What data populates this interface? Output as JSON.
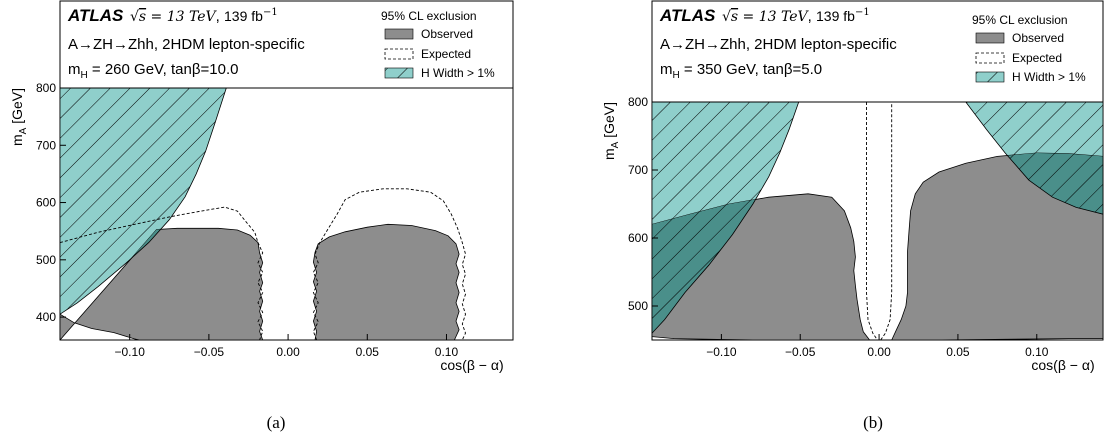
{
  "chart_data": [
    {
      "type": "area",
      "panel_label": "(a)",
      "experiment": "ATLAS",
      "energy_label": "√s = 13 TeV, 139 fb⁻¹",
      "sqrt_s": "13 TeV",
      "luminosity": "139 fb",
      "luminosity_exponent": "−1",
      "process": "A→ZH→Zhh, 2HDM lepton-specific",
      "parameters": "m_H = 260 GeV, tanβ=10.0",
      "mh_value": "260",
      "tanb_value": "10.0",
      "legend_title": "95% CL exclusion",
      "legend": [
        "Observed",
        "Expected",
        "H Width > 1%"
      ],
      "xlabel": "cos(β − α)",
      "ylabel": "m_A [GeV]",
      "xlim": [
        -0.144,
        0.142
      ],
      "ylim": [
        360,
        800
      ],
      "xticks": [
        -0.1,
        -0.05,
        0.0,
        0.05,
        0.1
      ],
      "xtick_labels": [
        "−0.10",
        "−0.05",
        "0.00",
        "0.05",
        "0.10"
      ],
      "yticks": [
        400,
        500,
        600,
        700,
        800
      ],
      "ytick_labels": [
        "400",
        "500",
        "600",
        "700",
        "800"
      ],
      "observed": [
        [
          [
            -0.144,
            360
          ],
          [
            -0.144,
            405
          ],
          [
            -0.135,
            390
          ],
          [
            -0.124,
            380
          ],
          [
            -0.11,
            373
          ],
          [
            -0.097,
            362
          ],
          [
            -0.094,
            360
          ],
          [
            -0.016,
            360
          ],
          [
            -0.018,
            375
          ],
          [
            -0.016,
            393
          ],
          [
            -0.018,
            410
          ],
          [
            -0.016,
            428
          ],
          [
            -0.018,
            445
          ],
          [
            -0.016,
            460
          ],
          [
            -0.018,
            478
          ],
          [
            -0.016,
            495
          ],
          [
            -0.018,
            512
          ],
          [
            -0.019,
            530
          ],
          [
            -0.024,
            543
          ],
          [
            -0.032,
            552
          ],
          [
            -0.044,
            555
          ],
          [
            -0.07,
            555
          ],
          [
            -0.083,
            553
          ]
        ],
        [
          [
            0.017,
            360
          ],
          [
            0.018,
            375
          ],
          [
            0.016,
            393
          ],
          [
            0.018,
            410
          ],
          [
            0.016,
            428
          ],
          [
            0.018,
            445
          ],
          [
            0.016,
            462
          ],
          [
            0.018,
            478
          ],
          [
            0.016,
            496
          ],
          [
            0.017,
            513
          ],
          [
            0.019,
            528
          ],
          [
            0.026,
            540
          ],
          [
            0.036,
            549
          ],
          [
            0.05,
            557
          ],
          [
            0.063,
            562
          ],
          [
            0.078,
            560
          ],
          [
            0.093,
            551
          ],
          [
            0.101,
            542
          ],
          [
            0.106,
            528
          ],
          [
            0.108,
            510
          ],
          [
            0.106,
            493
          ],
          [
            0.108,
            478
          ],
          [
            0.106,
            460
          ],
          [
            0.108,
            443
          ],
          [
            0.106,
            425
          ],
          [
            0.108,
            410
          ],
          [
            0.106,
            393
          ],
          [
            0.108,
            378
          ],
          [
            0.105,
            360
          ]
        ]
      ],
      "expected": [
        [
          [
            -0.144,
            530
          ],
          [
            -0.12,
            548
          ],
          [
            -0.095,
            563
          ],
          [
            -0.075,
            575
          ],
          [
            -0.055,
            585
          ],
          [
            -0.04,
            592
          ],
          [
            -0.032,
            585
          ],
          [
            -0.027,
            568
          ],
          [
            -0.021,
            548
          ],
          [
            -0.019,
            530
          ],
          [
            -0.016,
            512
          ],
          [
            -0.019,
            495
          ],
          [
            -0.016,
            478
          ],
          [
            -0.019,
            460
          ],
          [
            -0.016,
            443
          ],
          [
            -0.019,
            425
          ],
          [
            -0.016,
            408
          ],
          [
            -0.019,
            392
          ],
          [
            -0.016,
            375
          ],
          [
            -0.018,
            360
          ]
        ],
        [
          [
            0.018,
            360
          ],
          [
            0.016,
            375
          ],
          [
            0.019,
            392
          ],
          [
            0.016,
            408
          ],
          [
            0.019,
            425
          ],
          [
            0.016,
            443
          ],
          [
            0.019,
            460
          ],
          [
            0.016,
            478
          ],
          [
            0.019,
            495
          ],
          [
            0.017,
            510
          ],
          [
            0.02,
            530
          ],
          [
            0.025,
            553
          ],
          [
            0.031,
            580
          ],
          [
            0.036,
            605
          ],
          [
            0.045,
            618
          ],
          [
            0.06,
            624
          ],
          [
            0.075,
            624
          ],
          [
            0.09,
            618
          ],
          [
            0.098,
            603
          ],
          [
            0.103,
            580
          ],
          [
            0.107,
            555
          ],
          [
            0.11,
            530
          ],
          [
            0.112,
            510
          ],
          [
            0.11,
            492
          ],
          [
            0.112,
            475
          ],
          [
            0.11,
            458
          ],
          [
            0.112,
            440
          ],
          [
            0.11,
            423
          ],
          [
            0.112,
            405
          ],
          [
            0.11,
            388
          ],
          [
            0.112,
            372
          ],
          [
            0.11,
            360
          ]
        ]
      ],
      "width_region": [
        [
          [
            -0.144,
            800
          ],
          [
            -0.039,
            800
          ],
          [
            -0.046,
            740
          ],
          [
            -0.052,
            690
          ],
          [
            -0.058,
            650
          ],
          [
            -0.065,
            610
          ],
          [
            -0.075,
            570
          ],
          [
            -0.088,
            530
          ],
          [
            -0.102,
            495
          ],
          [
            -0.12,
            453
          ],
          [
            -0.133,
            425
          ],
          [
            -0.144,
            405
          ]
        ]
      ]
    },
    {
      "type": "area",
      "panel_label": "(b)",
      "experiment": "ATLAS",
      "energy_label": "√s = 13 TeV, 139 fb⁻¹",
      "sqrt_s": "13 TeV",
      "luminosity": "139 fb",
      "luminosity_exponent": "−1",
      "process": "A→ZH→Zhh, 2HDM lepton-specific",
      "parameters": "m_H = 350 GeV, tanβ=5.0",
      "mh_value": "350",
      "tanb_value": "5.0",
      "legend_title": "95% CL exclusion",
      "legend": [
        "Observed",
        "Expected",
        "H Width > 1%"
      ],
      "xlabel": "cos(β − α)",
      "ylabel": "m_A [GeV]",
      "xlim": [
        -0.144,
        0.142
      ],
      "ylim": [
        450,
        800
      ],
      "xticks": [
        -0.1,
        -0.05,
        0.0,
        0.05,
        0.1
      ],
      "xtick_labels": [
        "−0.10",
        "−0.05",
        "0.00",
        "0.05",
        "0.10"
      ],
      "yticks": [
        500,
        600,
        700,
        800
      ],
      "ytick_labels": [
        "500",
        "600",
        "700",
        "800"
      ],
      "observed": [
        [
          [
            -0.144,
            455
          ],
          [
            -0.144,
            620
          ],
          [
            -0.12,
            635
          ],
          [
            -0.095,
            650
          ],
          [
            -0.07,
            660
          ],
          [
            -0.045,
            665
          ],
          [
            -0.03,
            660
          ],
          [
            -0.022,
            640
          ],
          [
            -0.018,
            615
          ],
          [
            -0.016,
            595
          ],
          [
            -0.015,
            572
          ],
          [
            -0.016,
            552
          ],
          [
            -0.015,
            530
          ],
          [
            -0.014,
            510
          ],
          [
            -0.012,
            480
          ],
          [
            -0.01,
            462
          ],
          [
            -0.006,
            450
          ],
          [
            -0.08,
            450
          ],
          [
            -0.13,
            452
          ]
        ],
        [
          [
            0.008,
            450
          ],
          [
            0.011,
            465
          ],
          [
            0.014,
            480
          ],
          [
            0.017,
            500
          ],
          [
            0.018,
            520
          ],
          [
            0.018,
            550
          ],
          [
            0.018,
            580
          ],
          [
            0.019,
            610
          ],
          [
            0.02,
            640
          ],
          [
            0.023,
            665
          ],
          [
            0.028,
            682
          ],
          [
            0.038,
            697
          ],
          [
            0.055,
            710
          ],
          [
            0.075,
            720
          ],
          [
            0.1,
            725
          ],
          [
            0.12,
            724
          ],
          [
            0.142,
            720
          ],
          [
            0.142,
            452
          ],
          [
            0.12,
            452
          ],
          [
            0.08,
            451
          ],
          [
            0.04,
            450
          ]
        ]
      ],
      "expected": [
        [
          [
            -0.008,
            800
          ],
          [
            -0.008,
            700
          ],
          [
            -0.008,
            600
          ],
          [
            -0.008,
            520
          ],
          [
            -0.007,
            480
          ],
          [
            -0.004,
            460
          ],
          [
            -0.001,
            450
          ]
        ],
        [
          [
            0.001,
            450
          ],
          [
            0.004,
            460
          ],
          [
            0.007,
            480
          ],
          [
            0.008,
            520
          ],
          [
            0.008,
            600
          ],
          [
            0.008,
            700
          ],
          [
            0.008,
            800
          ]
        ]
      ],
      "width_region": [
        [
          [
            -0.144,
            800
          ],
          [
            -0.051,
            800
          ],
          [
            -0.057,
            760
          ],
          [
            -0.063,
            725
          ],
          [
            -0.07,
            690
          ],
          [
            -0.08,
            650
          ],
          [
            -0.093,
            605
          ],
          [
            -0.108,
            560
          ],
          [
            -0.123,
            520
          ],
          [
            -0.136,
            480
          ],
          [
            -0.144,
            460
          ]
        ],
        [
          [
            0.055,
            800
          ],
          [
            0.142,
            800
          ],
          [
            0.142,
            635
          ],
          [
            0.125,
            645
          ],
          [
            0.11,
            660
          ],
          [
            0.095,
            685
          ],
          [
            0.08,
            725
          ],
          [
            0.068,
            760
          ]
        ]
      ]
    }
  ],
  "colors": {
    "observed_fill": "#8d8d8d",
    "width_fill": "#8fcfcb",
    "overlap_fill": "#4a8f8a",
    "line": "#000000"
  }
}
